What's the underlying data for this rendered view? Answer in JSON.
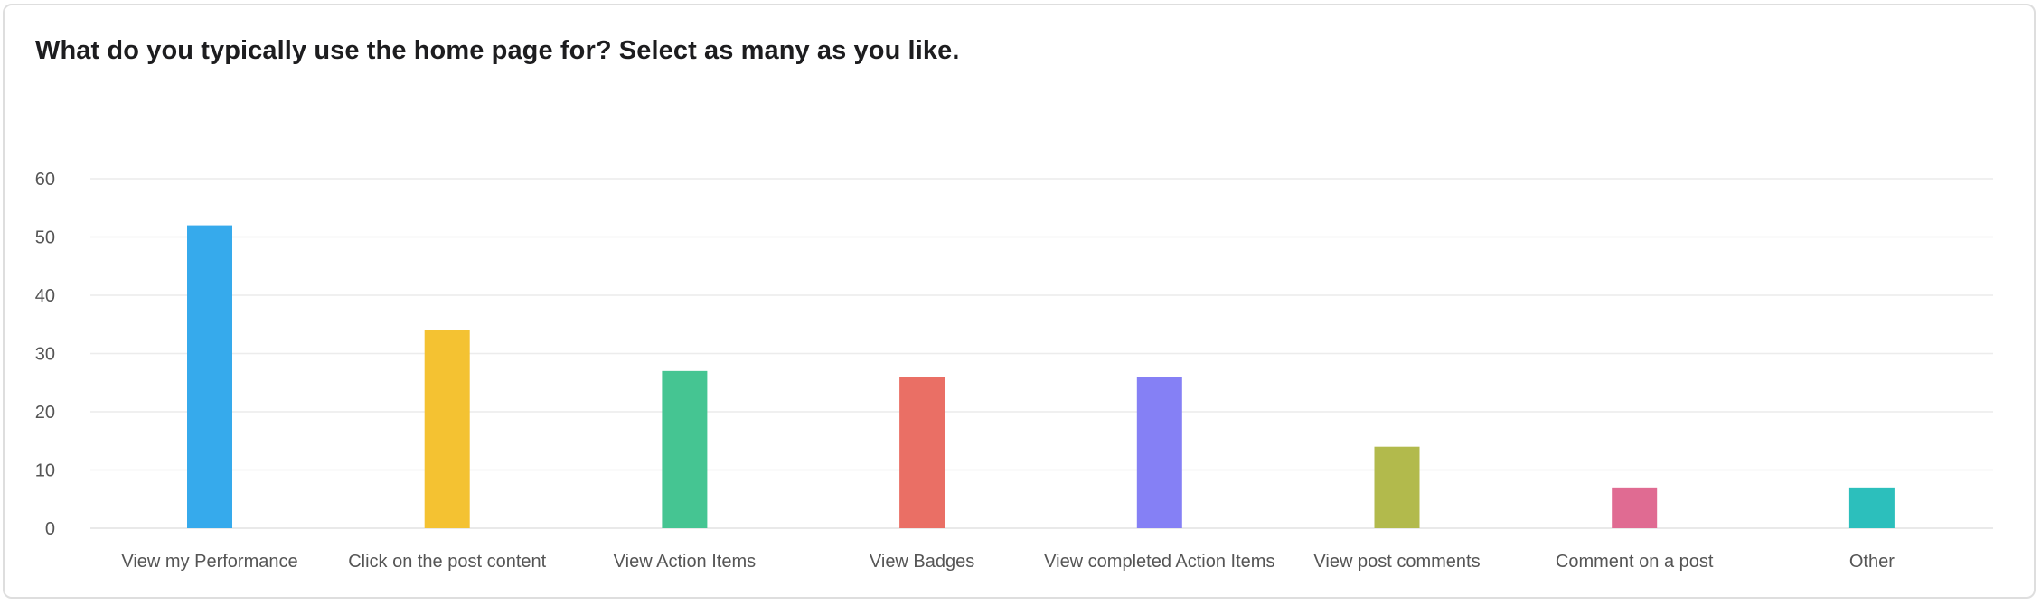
{
  "chart_data": {
    "type": "bar",
    "title": "What do you typically use the home page for? Select as many as you like.",
    "categories": [
      "View my Performance",
      "Click on the post content",
      "View Action Items",
      "View Badges",
      "View completed Action Items",
      "View post comments",
      "Comment on a post",
      "Other"
    ],
    "values": [
      52,
      34,
      27,
      26,
      26,
      14,
      7,
      7
    ],
    "colors": [
      "#36aaec",
      "#f4c232",
      "#45c592",
      "#ea6f65",
      "#8580f5",
      "#b2ba4c",
      "#e06b92",
      "#2cbfbc"
    ],
    "ylim": [
      0,
      60
    ],
    "yticks": [
      0,
      10,
      20,
      30,
      40,
      50,
      60
    ],
    "grid": true,
    "legend": "none",
    "xlabel": "",
    "ylabel": ""
  }
}
